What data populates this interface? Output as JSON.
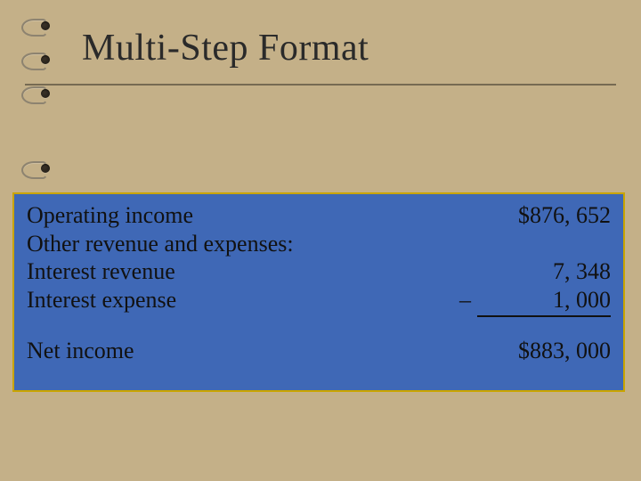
{
  "slide": {
    "background_color": "#c4b088",
    "rule_color": "#766a52",
    "title": "Multi-Step Format",
    "title_fontsize": 42,
    "title_color": "#2a2a2a"
  },
  "panel": {
    "background_color": "#3f68b6",
    "border_color": "#c9a400",
    "text_color": "#111111",
    "fontsize": 26,
    "rows": [
      {
        "label": "Operating income",
        "value": "$876, 652",
        "neg": "",
        "underline": false
      },
      {
        "label": "Other revenue and expenses:",
        "value": "",
        "neg": "",
        "underline": false
      },
      {
        "label": "Interest revenue",
        "value": "7, 348",
        "neg": "",
        "underline": false
      },
      {
        "label": "Interest expense",
        "value": "1, 000",
        "neg": "–",
        "underline": true
      }
    ],
    "net": {
      "label": "Net income",
      "value": "$883, 000"
    }
  }
}
